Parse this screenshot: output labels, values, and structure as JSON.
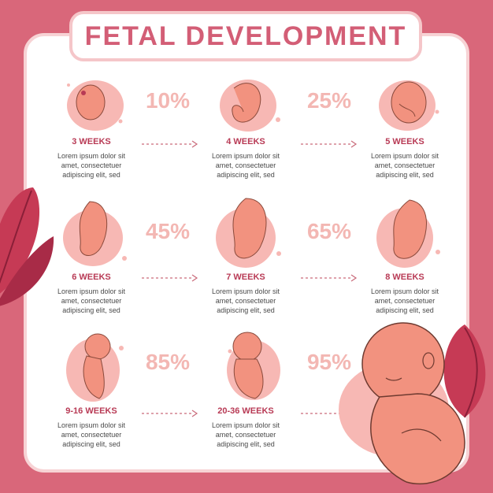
{
  "title": "FETAL DEVELOPMENT",
  "stages": [
    {
      "label": "3 WEEKS",
      "desc1": "Lorem ipsum dolor sit",
      "desc2": "amet, consectetuer",
      "desc3": "adipiscing elit, sed"
    },
    {
      "label": "4 WEEKS",
      "desc1": "Lorem ipsum dolor sit",
      "desc2": "amet, consectetuer",
      "desc3": "adipiscing elit, sed"
    },
    {
      "label": "5 WEEKS",
      "desc1": "Lorem ipsum dolor sit",
      "desc2": "amet, consectetuer",
      "desc3": "adipiscing elit, sed"
    },
    {
      "label": "6 WEEKS",
      "desc1": "Lorem ipsum dolor sit",
      "desc2": "amet, consectetuer",
      "desc3": "adipiscing elit, sed"
    },
    {
      "label": "7 WEEKS",
      "desc1": "Lorem ipsum dolor sit",
      "desc2": "amet, consectetuer",
      "desc3": "adipiscing elit, sed"
    },
    {
      "label": "8 WEEKS",
      "desc1": "Lorem ipsum dolor sit",
      "desc2": "amet, consectetuer",
      "desc3": "adipiscing elit, sed"
    },
    {
      "label": "9-16 WEEKS",
      "desc1": "Lorem ipsum dolor sit",
      "desc2": "amet, consectetuer",
      "desc3": "adipiscing elit, sed"
    },
    {
      "label": "20-36 WEEKS",
      "desc1": "Lorem ipsum dolor sit",
      "desc2": "amet, consectetuer",
      "desc3": "adipiscing elit, sed"
    }
  ],
  "percentages": [
    "10%",
    "25%",
    "45%",
    "65%",
    "85%",
    "95%"
  ],
  "colors": {
    "background": "#d9677a",
    "title": "#d35e76",
    "fetus": "#f2927f",
    "blob": "#f7b8b4",
    "leaf": "#c63a55",
    "percent": "#f3b7b3"
  }
}
